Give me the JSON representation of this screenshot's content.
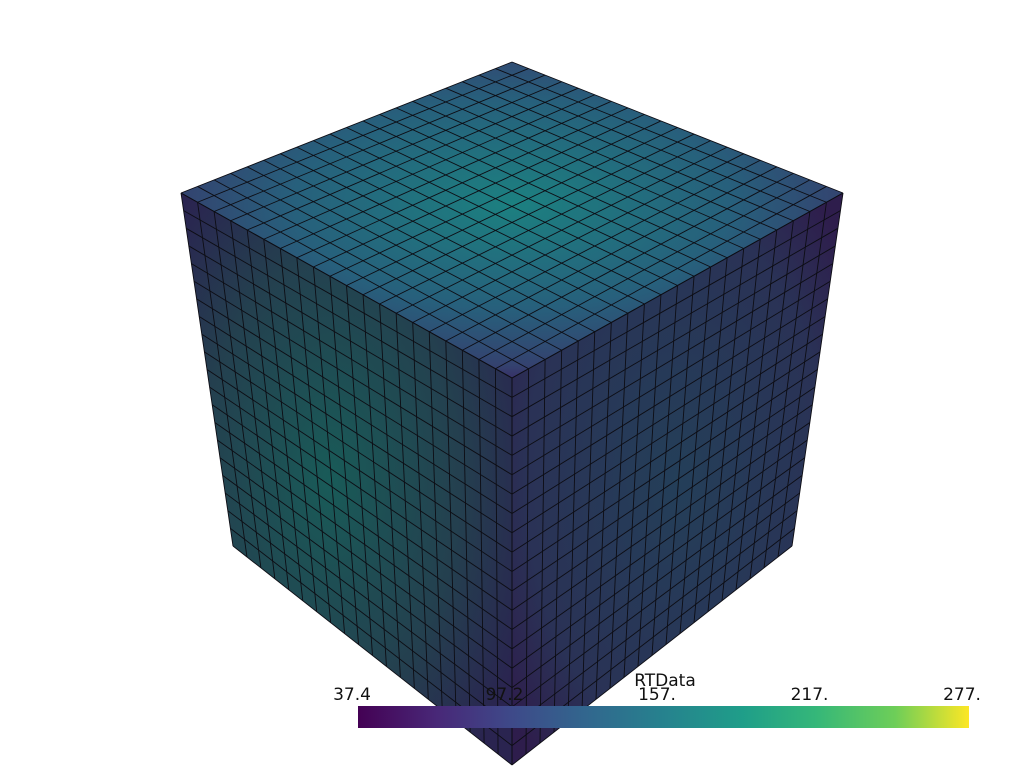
{
  "scalar_bar": {
    "title": "RTData",
    "labels": [
      "37.4",
      "97.2",
      "157.",
      "217.",
      "277."
    ]
  }
}
